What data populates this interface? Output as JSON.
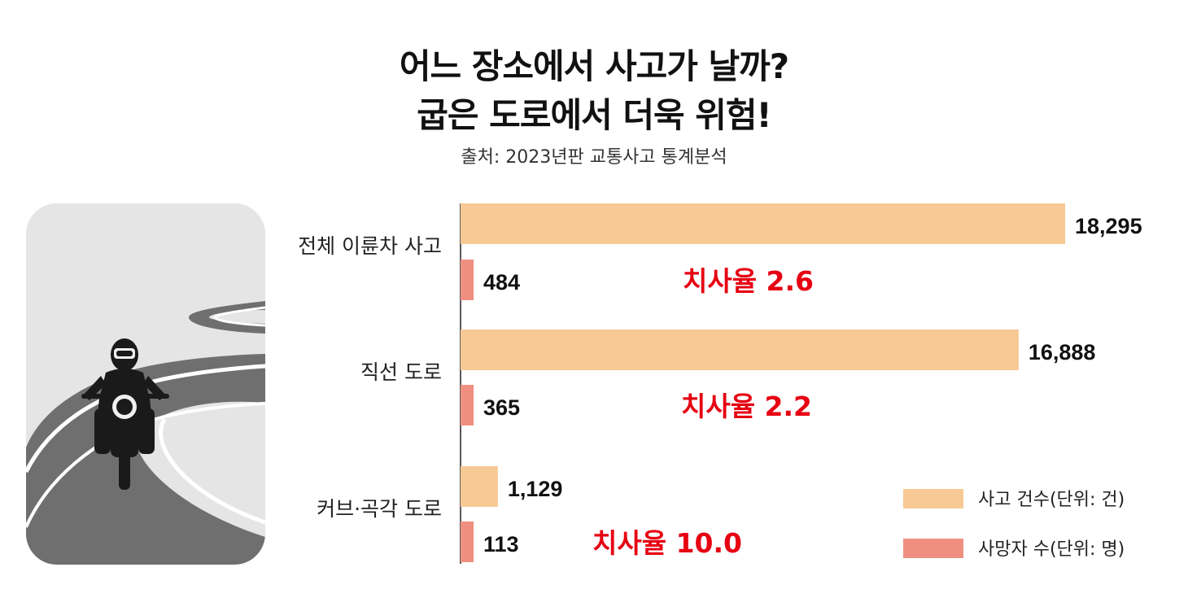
{
  "title_lines": [
    "어느 장소에서 사고가 날까?",
    "굽은 도로에서 더욱 위험!"
  ],
  "subtitle": "출처: 2023년판 교통사고 통계분석",
  "colors": {
    "accidents": "#f7c994",
    "deaths": "#ef8f7f",
    "fatality_text": "#e60012",
    "axis": "#222222",
    "illustration_bg": "#e5e5e5",
    "road": "#6f6f6f",
    "rider": "#1a1a1a"
  },
  "illustration": {
    "icon": "motorcycle-rider-on-curvy-road"
  },
  "chart_data": {
    "type": "bar",
    "orientation": "horizontal",
    "categories": [
      "전체 이륜차 사고",
      "직선 도로",
      "커브·곡각 도로"
    ],
    "series": [
      {
        "name": "사고 건수(단위: 건)",
        "values": [
          18295,
          16888,
          1129
        ],
        "labels": [
          "18,295",
          "16,888",
          "1,129"
        ]
      },
      {
        "name": "사망자 수(단위: 명)",
        "values": [
          484,
          365,
          113
        ],
        "labels": [
          "484",
          "365",
          "113"
        ]
      }
    ],
    "annotations": [
      "치사율 2.6",
      "치사율 2.2",
      "치사율 10.0"
    ],
    "xlim": [
      0,
      18295
    ],
    "grid": false,
    "legend_position": "bottom-right"
  }
}
